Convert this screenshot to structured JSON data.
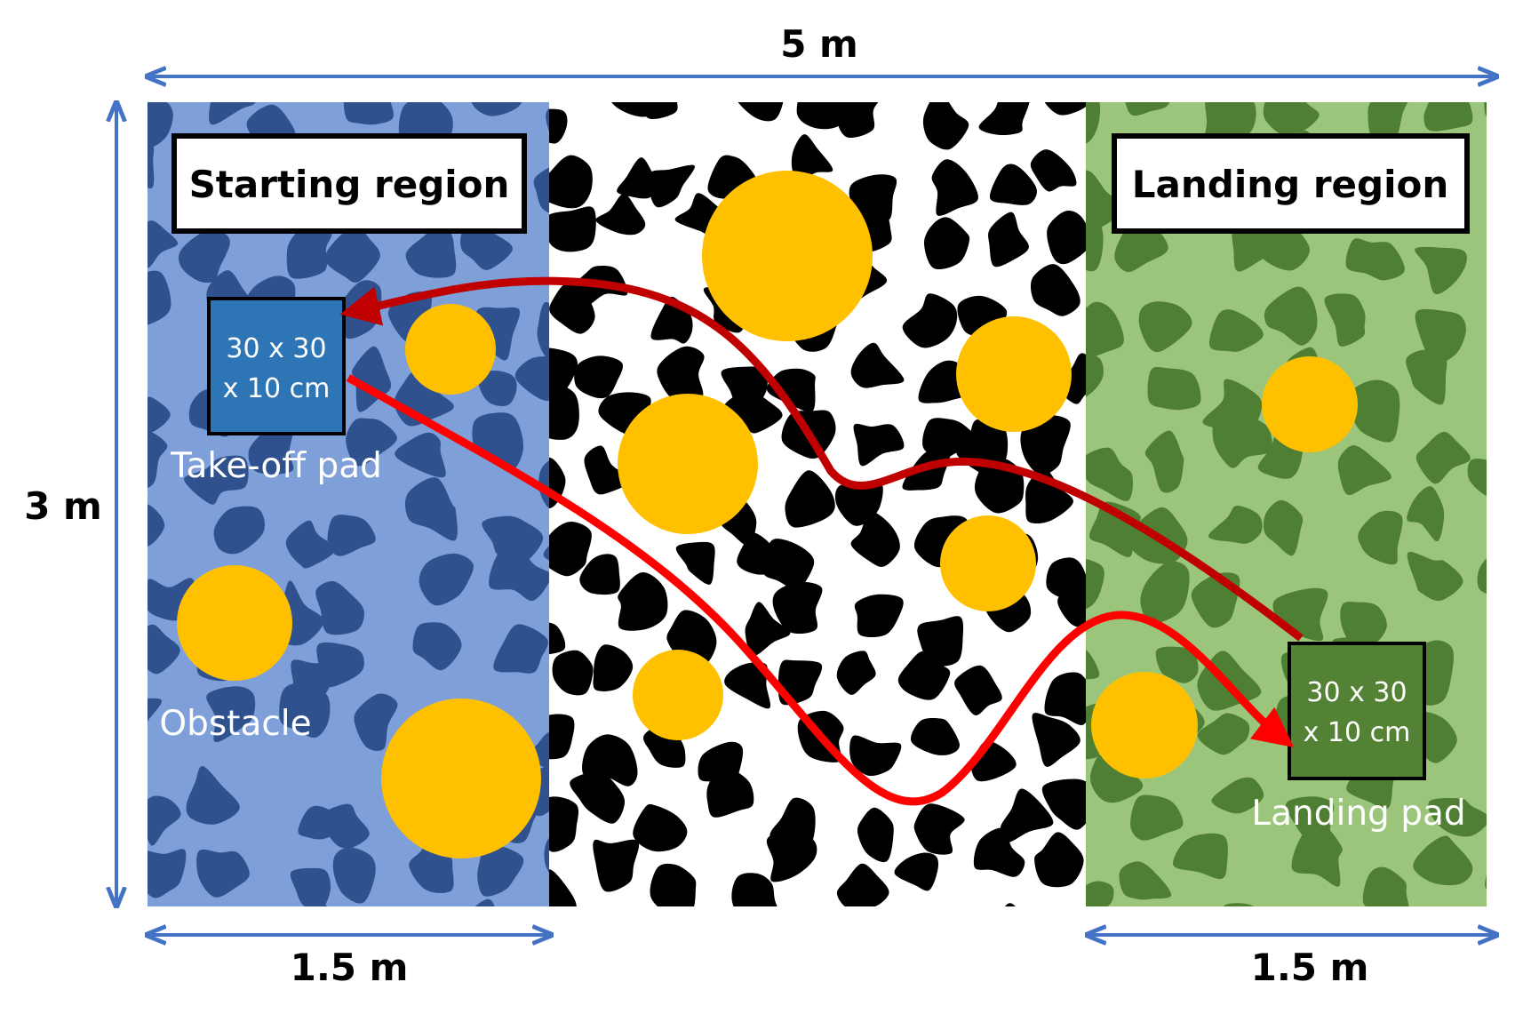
{
  "dimensions": {
    "width": "5 m",
    "height": "3 m",
    "start_width": "1.5 m",
    "landing_width": "1.5 m"
  },
  "regions": {
    "start_title": "Starting region",
    "landing_title": "Landing region"
  },
  "pads": {
    "takeoff_line1": "30 x 30",
    "takeoff_line2": "x 10 cm",
    "takeoff_label": "Take-off pad",
    "landing_line1": "30 x 30",
    "landing_line2": "x 10 cm",
    "landing_label": "Landing pad"
  },
  "legend": {
    "obstacle_label": "Obstacle"
  },
  "colors": {
    "start_light": "#7e9fd8",
    "start_dark": "#2f528f",
    "middle_light": "#ffffff",
    "middle_dark": "#000000",
    "landing_light": "#9bc57a",
    "landing_dark": "#4f7f32",
    "obstacle": "#ffc000",
    "takeoff_pad": "#2e75b6",
    "landing_pad": "#548235",
    "arrow_main": "#ff0000",
    "arrow_return": "#c00000",
    "dimension_line": "#4472c4"
  },
  "icons": {
    "obstacle": "circle-icon",
    "camouflage": "blob-pattern"
  }
}
